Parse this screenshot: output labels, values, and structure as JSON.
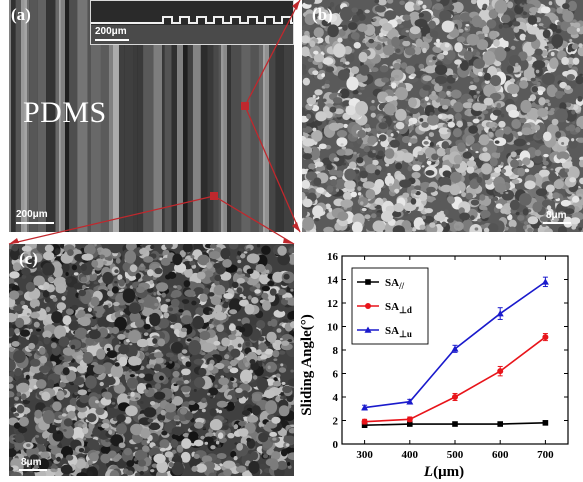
{
  "panels": {
    "a": {
      "label": "(a)",
      "material_label": "PDMS",
      "scale_bar": "200μm",
      "inset_scale_bar": "200μm"
    },
    "b": {
      "label": "(b)",
      "scale_bar": "8μm"
    },
    "c": {
      "label": "(c)",
      "scale_bar": "8μm"
    }
  },
  "colors": {
    "connector": "#c0282d",
    "series_parallel": "#000000",
    "series_perp_d": "#e8141a",
    "series_perp_u": "#1a1acc"
  },
  "chart_data": {
    "type": "line",
    "xlabel_italic": "L",
    "xlabel_unit": "(μm)",
    "ylabel": "Sliding Angle(°)",
    "x": [
      300,
      400,
      500,
      600,
      700
    ],
    "xlim": [
      250,
      750
    ],
    "ylim": [
      0,
      16
    ],
    "xticks": [
      300,
      400,
      500,
      600,
      700
    ],
    "yticks": [
      0,
      2,
      4,
      6,
      8,
      10,
      12,
      14,
      16
    ],
    "legend_position": "top-left",
    "grid": false,
    "series": [
      {
        "name": "SA",
        "sub": "//",
        "marker": "square",
        "color": "#000000",
        "values": [
          1.6,
          1.7,
          1.7,
          1.7,
          1.8
        ],
        "errors": [
          0.1,
          0.1,
          0.1,
          0.1,
          0.1
        ]
      },
      {
        "name": "SA",
        "sub": "⊥d",
        "marker": "circle",
        "color": "#e8141a",
        "values": [
          1.9,
          2.1,
          4.0,
          6.2,
          9.1
        ],
        "errors": [
          0.2,
          0.2,
          0.3,
          0.4,
          0.3
        ]
      },
      {
        "name": "SA",
        "sub": "⊥u",
        "marker": "triangle",
        "color": "#1a1acc",
        "values": [
          3.1,
          3.6,
          8.1,
          11.1,
          13.8
        ],
        "errors": [
          0.2,
          0.2,
          0.3,
          0.5,
          0.4
        ]
      }
    ]
  }
}
